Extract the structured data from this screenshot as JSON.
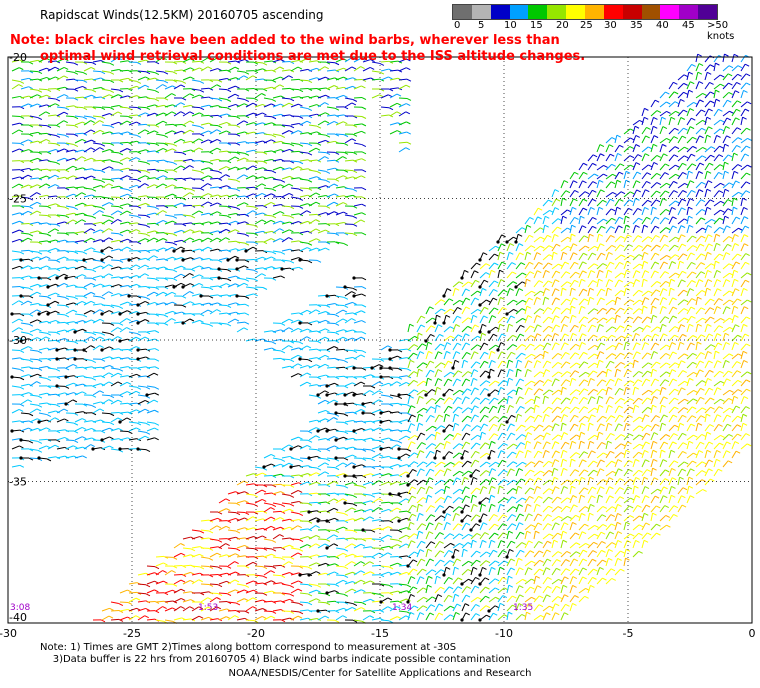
{
  "header": {
    "title": "Rapidscat Winds(12.5KM) 20160705 ascending",
    "note_line1": "Note: black circles have been added to the wind barbs, wherever less than",
    "note_line2": "optimal wind retrieval conditions are met due to the ISS altitude changes."
  },
  "scale": {
    "colors": [
      "#6f6f6f",
      "#b4b4b4",
      "#0000c8",
      "#00a0ff",
      "#00c800",
      "#96e600",
      "#ffff00",
      "#ffb400",
      "#ff0000",
      "#c80000",
      "#a05000",
      "#ff00ff",
      "#a000c8",
      "#500096"
    ],
    "labels": [
      "0",
      "5",
      "10",
      "15",
      "20",
      "25",
      "30",
      "35",
      "40",
      "45",
      ">50 knots"
    ]
  },
  "axes": {
    "lat_labels": [
      "-20",
      "-25",
      "-30",
      "-35",
      "-40"
    ],
    "lon_labels": [
      "-30",
      "-25",
      "-20",
      "-15",
      "-10",
      "-5",
      "0"
    ]
  },
  "times": [
    "3:08",
    "1:53",
    "1:34",
    "1:35"
  ],
  "footer": {
    "line1": "Note: 1) Times are GMT 2)Times along bottom correspond to measurement at -30S",
    "line2": "3)Data buffer is 22 hrs from 20160705 4) Black wind barbs indicate possible contamination",
    "line3": "NOAA/NESDIS/Center for Satellite Applications and Research"
  }
}
